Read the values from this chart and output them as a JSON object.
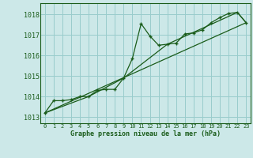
{
  "title": "Graphe pression niveau de la mer (hPa)",
  "bg_color": "#cce8e8",
  "grid_color": "#99cccc",
  "line_color": "#1a5c1a",
  "marker_color": "#1a5c1a",
  "xlim": [
    -0.5,
    23.5
  ],
  "ylim": [
    1012.7,
    1018.55
  ],
  "yticks": [
    1013,
    1014,
    1015,
    1016,
    1017,
    1018
  ],
  "xticks": [
    0,
    1,
    2,
    3,
    4,
    5,
    6,
    7,
    8,
    9,
    10,
    11,
    12,
    13,
    14,
    15,
    16,
    17,
    18,
    19,
    20,
    21,
    22,
    23
  ],
  "series1_x": [
    0,
    1,
    2,
    3,
    4,
    5,
    6,
    7,
    8,
    9,
    10,
    11,
    12,
    13,
    14,
    15,
    16,
    17,
    18,
    19,
    20,
    21,
    22,
    23
  ],
  "series1_y": [
    1013.2,
    1013.8,
    1013.8,
    1013.85,
    1014.0,
    1014.0,
    1014.3,
    1014.35,
    1014.35,
    1014.9,
    1015.85,
    1017.55,
    1016.95,
    1016.5,
    1016.55,
    1016.6,
    1017.05,
    1017.1,
    1017.25,
    1017.6,
    1017.85,
    1018.05,
    1018.1,
    1017.6
  ],
  "series2_x": [
    0,
    23
  ],
  "series2_y": [
    1013.2,
    1017.6
  ],
  "series3_x": [
    0,
    5,
    9,
    14,
    22,
    23
  ],
  "series3_y": [
    1013.2,
    1014.0,
    1014.9,
    1016.55,
    1018.1,
    1017.6
  ]
}
